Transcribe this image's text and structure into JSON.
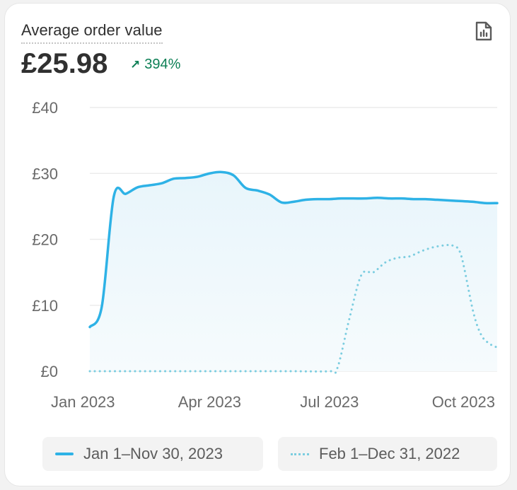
{
  "card": {
    "title": "Average order value",
    "value": "£25.98",
    "delta": "394%",
    "delta_direction": "up",
    "report_icon": "report-icon"
  },
  "colors": {
    "current_series": "#2eb2e6",
    "previous_series": "#7ccde0",
    "delta_positive": "#0c7f55"
  },
  "chart_data": {
    "type": "line",
    "title": "",
    "xlabel": "",
    "ylabel": "",
    "ylim": [
      0,
      40
    ],
    "yticks": [
      "£0",
      "£10",
      "£20",
      "£30",
      "£40"
    ],
    "yticks_values": [
      0,
      10,
      20,
      30,
      40
    ],
    "xticks": [
      "Jan 2023",
      "Apr 2023",
      "Jul 2023",
      "Oct 2023"
    ],
    "xticks_months": [
      0,
      3,
      6,
      9
    ],
    "grid": true,
    "legend_position": "bottom",
    "series": [
      {
        "name": "Jan 1–Nov 30, 2023",
        "style": "solid",
        "area_fill": true,
        "x": [
          0,
          0.3,
          0.6,
          0.9,
          1.2,
          1.5,
          1.8,
          2.1,
          2.4,
          2.7,
          3.0,
          3.3,
          3.6,
          3.9,
          4.2,
          4.5,
          4.8,
          5.1,
          5.4,
          5.7,
          6.0,
          6.3,
          6.6,
          6.9,
          7.2,
          7.5,
          7.8,
          8.1,
          8.4,
          8.7,
          9.0,
          9.3,
          9.6,
          9.9,
          10.2
        ],
        "values": [
          6.7,
          9.8,
          26.5,
          26.9,
          27.9,
          28.2,
          28.5,
          29.2,
          29.3,
          29.5,
          30.0,
          30.2,
          29.7,
          27.8,
          27.4,
          26.8,
          25.6,
          25.7,
          26.0,
          26.1,
          26.1,
          26.2,
          26.2,
          26.2,
          26.3,
          26.2,
          26.2,
          26.1,
          26.1,
          26.0,
          25.9,
          25.8,
          25.7,
          25.5,
          25.5
        ]
      },
      {
        "name": "Feb 1–Dec 31, 2022",
        "style": "dotted",
        "area_fill": false,
        "x": [
          0,
          1,
          2,
          3,
          4,
          5,
          6,
          6.2,
          6.5,
          6.8,
          7.1,
          7.4,
          7.7,
          8.0,
          8.3,
          8.6,
          8.9,
          9.1,
          9.3,
          9.6,
          9.8,
          10.0,
          10.2
        ],
        "values": [
          0,
          0,
          0,
          0,
          0,
          0,
          0,
          0.5,
          8.0,
          14.6,
          15.0,
          16.5,
          17.2,
          17.4,
          18.2,
          18.8,
          19.1,
          19.0,
          17.5,
          9.0,
          5.5,
          4.2,
          3.6
        ]
      }
    ]
  },
  "legend": {
    "items": [
      {
        "label": "Jan 1–Nov 30, 2023"
      },
      {
        "label": "Feb 1–Dec 31, 2022"
      }
    ]
  }
}
